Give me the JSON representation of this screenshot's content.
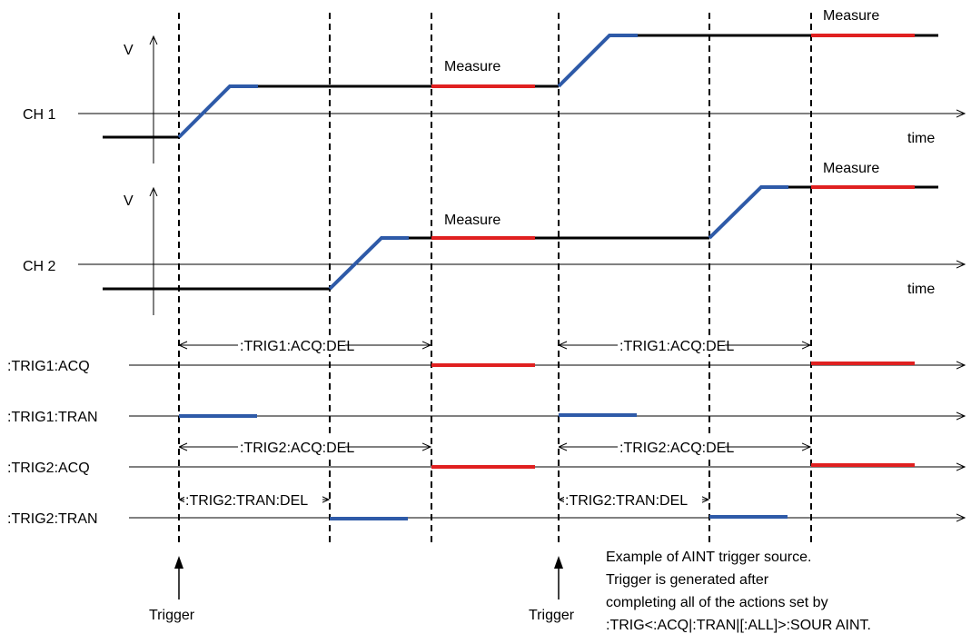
{
  "colors": {
    "rise": "#2e5aa8",
    "measure": "#e02020",
    "line": "#000000"
  },
  "channels": [
    {
      "label": "CH 1",
      "axis_label": "V",
      "time_label": "time"
    },
    {
      "label": "CH 2",
      "axis_label": "V",
      "time_label": "time"
    }
  ],
  "measure_label": "Measure",
  "rows": [
    {
      "label": ":TRIG1:ACQ"
    },
    {
      "label": ":TRIG1:TRAN"
    },
    {
      "label": ":TRIG2:ACQ"
    },
    {
      "label": ":TRIG2:TRAN"
    }
  ],
  "delays": {
    "trig1_acq": ":TRIG1:ACQ:DEL",
    "trig2_acq": ":TRIG2:ACQ:DEL",
    "trig2_tran": ":TRIG2:TRAN:DEL"
  },
  "trigger_label": "Trigger",
  "note_lines": [
    "Example of AINT trigger source.",
    "Trigger is generated after",
    "completing all of the actions set by",
    ":TRIG<:ACQ|:TRAN|[:ALL]>:SOUR AINT."
  ]
}
